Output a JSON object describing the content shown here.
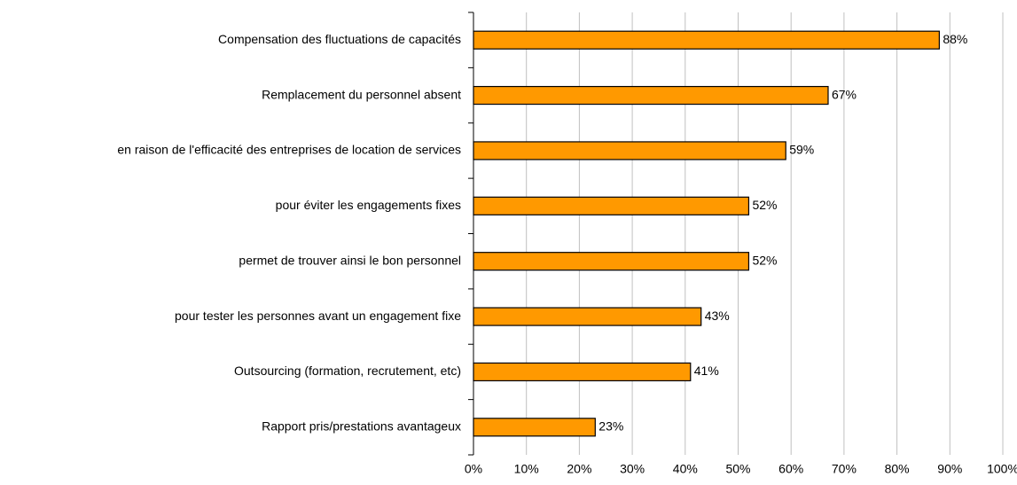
{
  "chart_data": {
    "type": "bar",
    "orientation": "horizontal",
    "categories": [
      "Compensation des fluctuations de capacités",
      "Remplacement du personnel absent",
      "en raison de l'efficacité des entreprises de location de services",
      "pour éviter les engagements fixes",
      "permet de trouver ainsi le bon personnel",
      "pour tester les personnes avant un engagement fixe",
      "Outsourcing (formation, recrutement, etc)",
      "Rapport pris/prestations avantageux"
    ],
    "values": [
      88,
      67,
      59,
      52,
      52,
      43,
      41,
      23
    ],
    "value_labels": [
      "88%",
      "67%",
      "59%",
      "52%",
      "52%",
      "43%",
      "41%",
      "23%"
    ],
    "color": "#ff9900",
    "xlim": [
      0,
      100
    ],
    "xticks": [
      {
        "value": 0,
        "label": "0%"
      },
      {
        "value": 10,
        "label": "10%"
      },
      {
        "value": 20,
        "label": "20%"
      },
      {
        "value": 30,
        "label": "30%"
      },
      {
        "value": 40,
        "label": "40%"
      },
      {
        "value": 50,
        "label": "50%"
      },
      {
        "value": 60,
        "label": "60%"
      },
      {
        "value": 70,
        "label": "70%"
      },
      {
        "value": 80,
        "label": "80%"
      },
      {
        "value": 90,
        "label": "90%"
      },
      {
        "value": 100,
        "label": "100%"
      }
    ],
    "grid": true
  }
}
